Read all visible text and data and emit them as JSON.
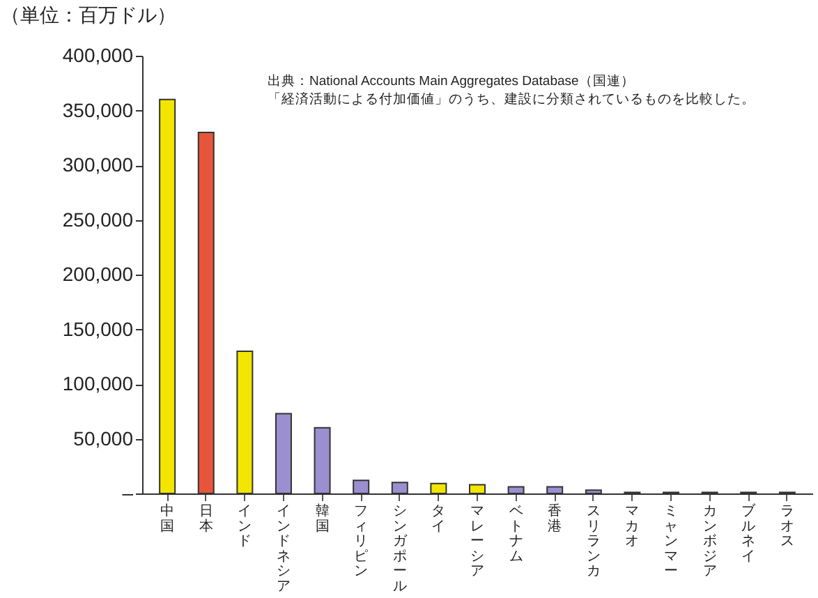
{
  "chart_data": {
    "type": "bar",
    "ylabel": "（単位：百万ドル）",
    "annotations": [
      "出典：National Accounts Main Aggregates Database（国連）",
      "「経済活動による付加価値」のうち、建設に分類されているものを比較した。"
    ],
    "categories": [
      "中国",
      "日本",
      "インド",
      "インドネシア",
      "韓国",
      "フィリピン",
      "シンガポール",
      "タイ",
      "マレーシア",
      "ベトナム",
      "香港",
      "スリランカ",
      "マカオ",
      "ミャンマー",
      "カンボジア",
      "ブルネイ",
      "ラオス"
    ],
    "values": [
      360000,
      330000,
      130000,
      73000,
      60000,
      12000,
      10000,
      9000,
      8000,
      6000,
      6000,
      3000,
      1000,
      1000,
      1000,
      1000,
      1000
    ],
    "colors": [
      "#f2e600",
      "#e8553a",
      "#f2e600",
      "#9b8fd0",
      "#9b8fd0",
      "#9b8fd0",
      "#9b8fd0",
      "#f2e600",
      "#f2e600",
      "#9b8fd0",
      "#9b8fd0",
      "#9b8fd0",
      "#9b8fd0",
      "#9b8fd0",
      "#9b8fd0",
      "#9b8fd0",
      "#9b8fd0"
    ],
    "ylim": [
      0,
      400000
    ],
    "yticks": [
      {
        "value": 0,
        "label": "–"
      },
      {
        "value": 50000,
        "label": "50,000"
      },
      {
        "value": 100000,
        "label": "100,000"
      },
      {
        "value": 150000,
        "label": "150,000"
      },
      {
        "value": 200000,
        "label": "200,000"
      },
      {
        "value": 250000,
        "label": "250,000"
      },
      {
        "value": 300000,
        "label": "300,000"
      },
      {
        "value": 350000,
        "label": "350,000"
      },
      {
        "value": 400000,
        "label": "400,000"
      }
    ],
    "grid": false,
    "legend": false
  }
}
